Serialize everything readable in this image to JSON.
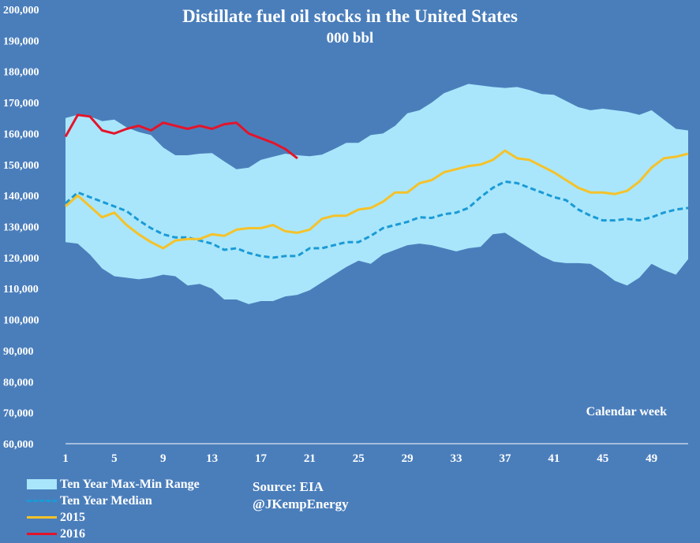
{
  "chart_data": {
    "type": "line",
    "title": "Distillate fuel oil stocks in the United States",
    "subtitle": "000 bbl",
    "xlabel": "Calendar week",
    "ylabel": "",
    "ylim": [
      60000,
      200000
    ],
    "xlim": [
      1,
      52
    ],
    "y_ticks": [
      "60,000",
      "70,000",
      "80,000",
      "90,000",
      "100,000",
      "110,000",
      "120,000",
      "130,000",
      "140,000",
      "150,000",
      "160,000",
      "170,000",
      "180,000",
      "190,000",
      "200,000"
    ],
    "x_ticks": [
      "1",
      "5",
      "9",
      "13",
      "17",
      "21",
      "25",
      "29",
      "33",
      "37",
      "41",
      "45",
      "49"
    ],
    "grid": false,
    "legend_position": "bottom-left",
    "range": {
      "name": "Ten Year Max-Min Range",
      "color": "#a9e6fb",
      "max": [
        165000,
        166000,
        165500,
        164000,
        164500,
        162000,
        160500,
        159500,
        155500,
        153000,
        153000,
        153500,
        153700,
        151000,
        148500,
        149000,
        151500,
        152500,
        153500,
        153000,
        152700,
        153200,
        155000,
        157000,
        157000,
        159500,
        160000,
        162500,
        166500,
        167500,
        170000,
        173000,
        174500,
        176000,
        175500,
        175000,
        174700,
        175000,
        174000,
        172700,
        172500,
        170500,
        168500,
        167500,
        168000,
        167500,
        167000,
        166000,
        167500,
        164500,
        161500,
        161000
      ],
      "min": [
        125000,
        124500,
        121000,
        116500,
        114000,
        113500,
        113000,
        113500,
        114500,
        114000,
        111000,
        111500,
        110000,
        106500,
        106500,
        105000,
        106000,
        106000,
        107500,
        108000,
        109500,
        112000,
        114500,
        117000,
        119000,
        118000,
        121000,
        122500,
        124000,
        124500,
        124000,
        123000,
        122000,
        123000,
        123500,
        127500,
        128000,
        125500,
        123000,
        120500,
        118700,
        118200,
        118200,
        118000,
        115500,
        112500,
        111000,
        113500,
        118000,
        116000,
        114500,
        119500
      ]
    },
    "series": [
      {
        "name": "Ten Year Median",
        "color": "#1a9ad6",
        "style": "dashed",
        "values": [
          137500,
          141000,
          139500,
          138000,
          136500,
          135000,
          132000,
          129500,
          127500,
          126500,
          126500,
          125500,
          124500,
          122500,
          123000,
          121500,
          120500,
          120000,
          120500,
          120500,
          123000,
          123000,
          124000,
          125000,
          125000,
          127000,
          129500,
          130500,
          131500,
          133000,
          132800,
          134000,
          134500,
          136000,
          139500,
          142500,
          144500,
          144000,
          142500,
          141000,
          139500,
          138500,
          135500,
          133500,
          132000,
          132000,
          132500,
          132000,
          133000,
          134500,
          135500,
          136000
        ]
      },
      {
        "name": "2015",
        "color": "#f5c22a",
        "style": "solid",
        "values": [
          136500,
          140000,
          136500,
          133000,
          134500,
          130500,
          127500,
          125000,
          123000,
          125500,
          126000,
          126000,
          127500,
          127000,
          129000,
          129500,
          129500,
          130500,
          128500,
          128000,
          129000,
          132500,
          133500,
          133500,
          135500,
          136000,
          138000,
          141000,
          141000,
          144000,
          145000,
          147500,
          148500,
          149500,
          150000,
          151500,
          154500,
          152000,
          151500,
          149500,
          147500,
          145000,
          142500,
          141000,
          141000,
          140500,
          141500,
          144500,
          149000,
          152000,
          152500,
          153500
        ]
      },
      {
        "name": "2016",
        "color": "#e4142a",
        "style": "solid",
        "values": [
          159000,
          166000,
          165500,
          161000,
          160000,
          161500,
          162500,
          161000,
          163500,
          162500,
          161500,
          162500,
          161500,
          163000,
          163500,
          160000,
          158500,
          157000,
          155000,
          152000
        ]
      }
    ]
  },
  "footer": {
    "source": "Source: EIA",
    "handle": "@JKempEnergy"
  }
}
